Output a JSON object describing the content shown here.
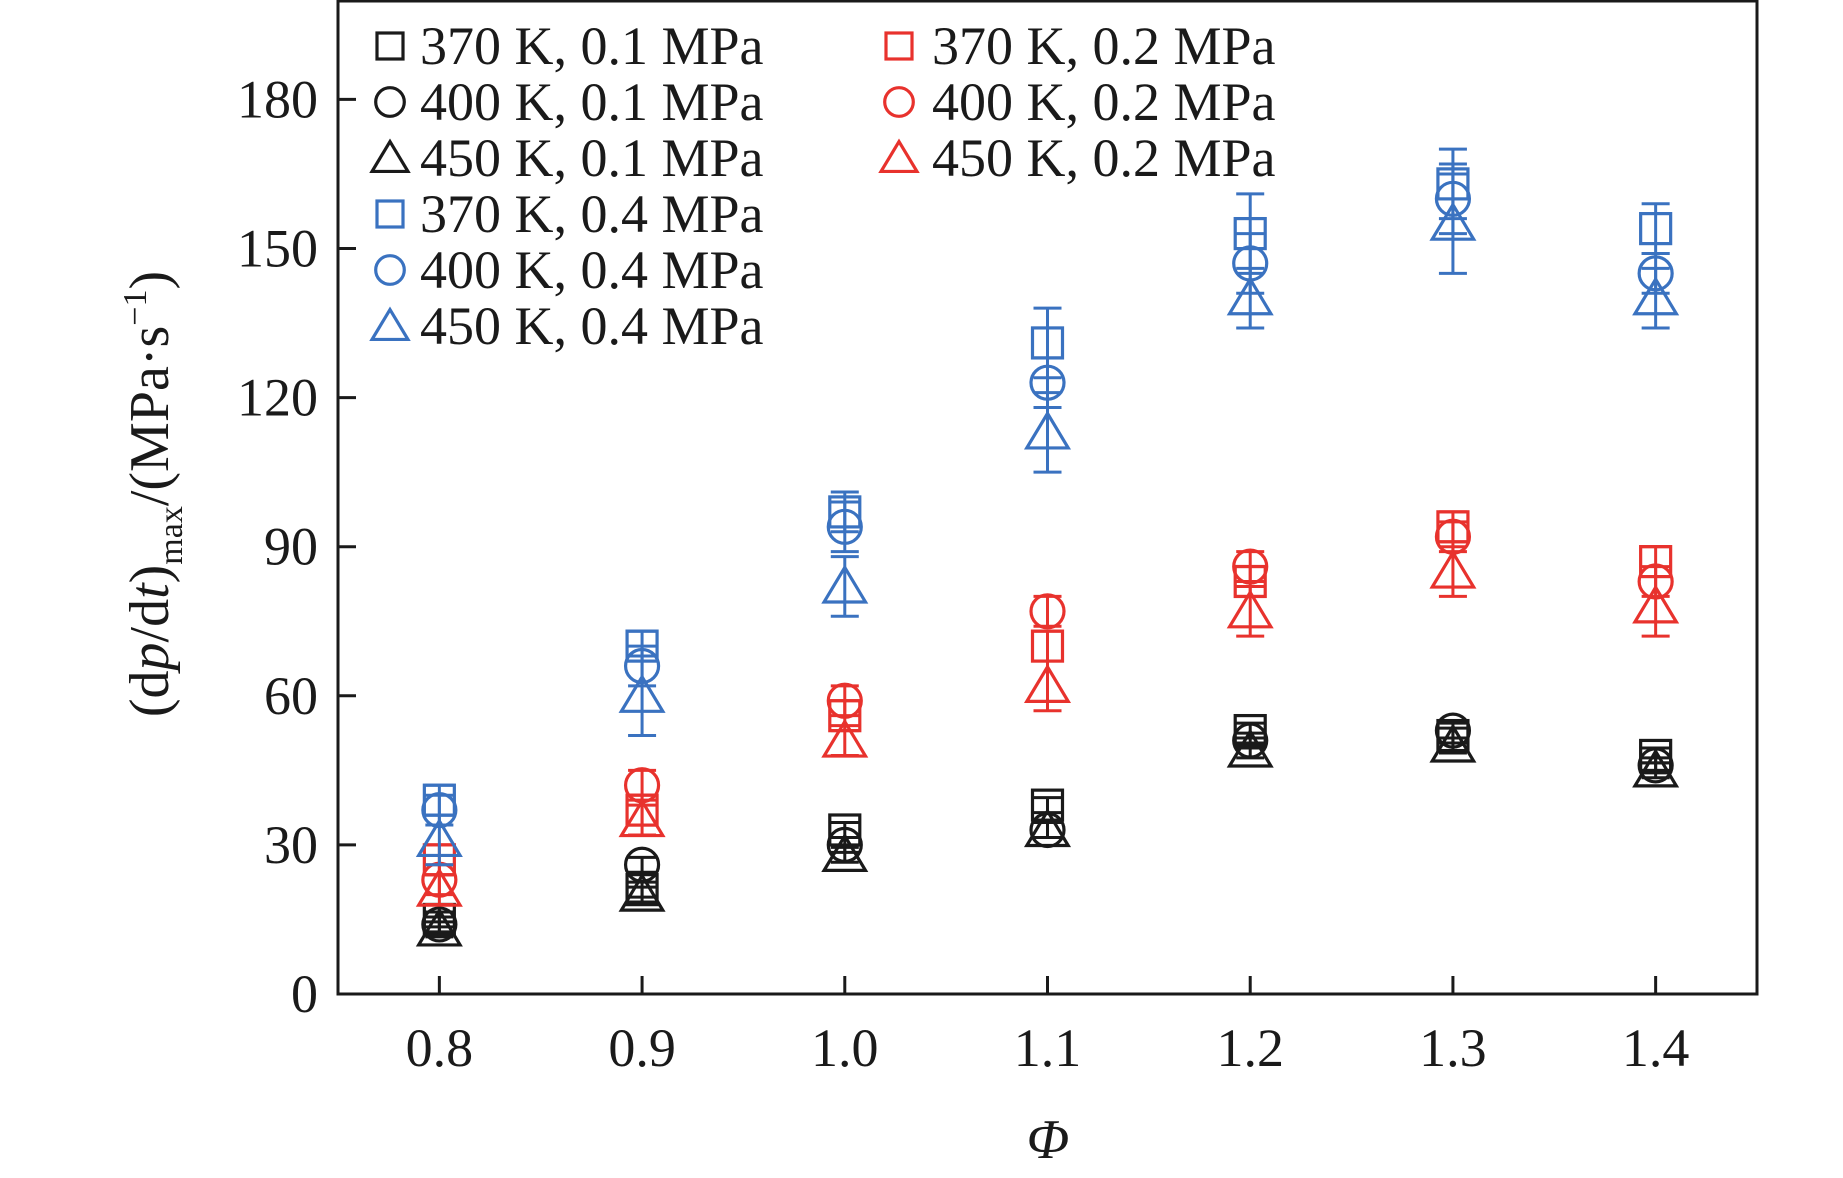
{
  "chart_data": {
    "type": "scatter",
    "title": "",
    "xlabel": "Φ",
    "ylabel": "(dp/dt)max/(MPa·s−1)",
    "ylabel_parts": {
      "open": "(d",
      "p": "p",
      "slash_d": "/d",
      "t": "t",
      "close": ")",
      "sub": "max",
      "unit_open": "/(MPa·s",
      "sup": "−1",
      "unit_close": ")"
    },
    "x_ticks": [
      "0.8",
      "0.9",
      "1.0",
      "1.1",
      "1.2",
      "1.3",
      "1.4"
    ],
    "y_ticks": [
      "0",
      "30",
      "60",
      "90",
      "120",
      "150",
      "180"
    ],
    "xlim": [
      0.75,
      1.45
    ],
    "ylim": [
      0,
      200
    ],
    "grid": false,
    "legend_position": "top-left",
    "x": [
      0.8,
      0.9,
      1.0,
      1.1,
      1.2,
      1.3,
      1.4
    ],
    "series": [
      {
        "name": "370 K, 0.1 MPa",
        "marker": "square",
        "color": "#1a1a1a",
        "values": [
          15,
          21,
          33,
          38,
          53,
          52,
          48
        ],
        "errors": [
          1.5,
          1.5,
          1.5,
          1.5,
          1.5,
          1.5,
          1.5
        ]
      },
      {
        "name": "400 K, 0.1 MPa",
        "marker": "circle",
        "color": "#1a1a1a",
        "values": [
          14,
          26,
          30,
          33,
          51,
          53,
          46
        ],
        "errors": [
          1.5,
          1.5,
          1.5,
          1.5,
          1.5,
          1.5,
          1.5
        ]
      },
      {
        "name": "450 K, 0.1 MPa",
        "marker": "triangle",
        "color": "#1a1a1a",
        "values": [
          13,
          20,
          28,
          33,
          49,
          50,
          45
        ],
        "errors": [
          1.5,
          1.5,
          1.5,
          1.5,
          1.5,
          1.5,
          1.5
        ]
      },
      {
        "name": "370 K, 0.2 MPa",
        "marker": "square",
        "color": "#e8322d",
        "values": [
          27,
          37,
          56,
          70,
          83,
          94,
          87
        ],
        "errors": [
          3,
          3,
          3,
          3,
          3,
          3,
          3
        ]
      },
      {
        "name": "400 K, 0.2 MPa",
        "marker": "circle",
        "color": "#e8322d",
        "values": [
          23,
          42,
          59,
          77,
          86,
          92,
          83
        ],
        "errors": [
          3,
          3,
          3,
          3,
          3,
          3,
          3
        ]
      },
      {
        "name": "450 K, 0.2 MPa",
        "marker": "triangle",
        "color": "#e8322d",
        "values": [
          21,
          35,
          51,
          62,
          77,
          85,
          78
        ],
        "errors": [
          3,
          3,
          3,
          5,
          5,
          5,
          6
        ]
      },
      {
        "name": "370 K, 0.4 MPa",
        "marker": "square",
        "color": "#3a72c0",
        "values": [
          39,
          70,
          97,
          131,
          153,
          163,
          154
        ],
        "errors": [
          3,
          3,
          4,
          7,
          8,
          7,
          5
        ]
      },
      {
        "name": "400 K, 0.4 MPa",
        "marker": "circle",
        "color": "#3a72c0",
        "values": [
          37,
          66,
          94,
          123,
          147,
          160,
          145
        ],
        "errors": [
          3,
          4,
          5,
          5,
          6,
          7,
          4
        ]
      },
      {
        "name": "450 K, 0.4 MPa",
        "marker": "triangle",
        "color": "#3a72c0",
        "values": [
          31,
          60,
          82,
          113,
          140,
          155,
          140
        ],
        "errors": [
          5,
          8,
          6,
          8,
          6,
          10,
          6
        ]
      }
    ]
  }
}
